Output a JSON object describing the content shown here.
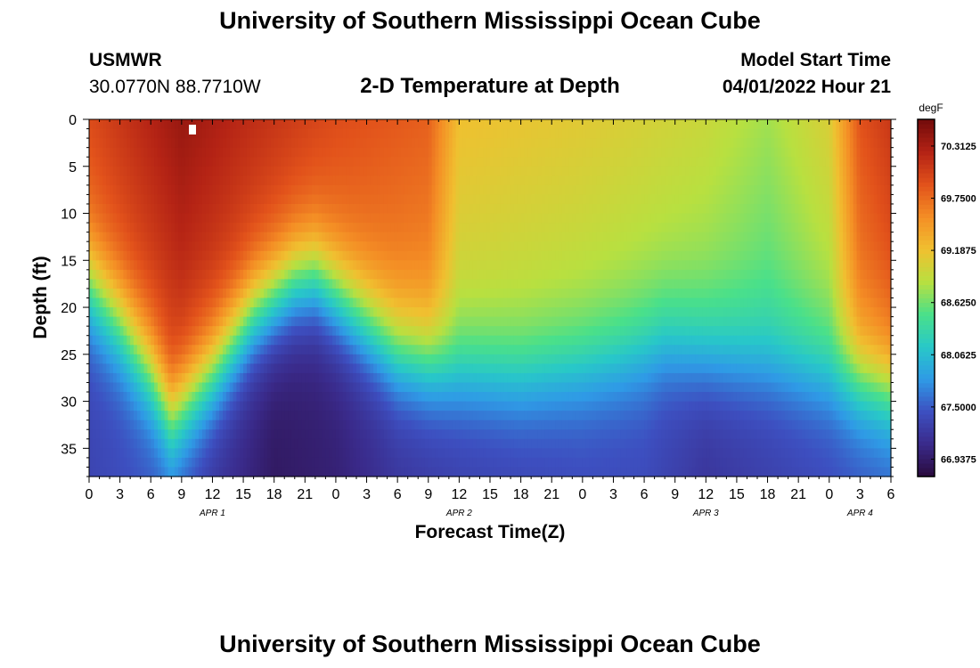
{
  "header": {
    "title": "University of Southern Mississippi Ocean Cube",
    "station": "USMWR",
    "coords": "30.0770N  88.7710W",
    "subtitle": "2-D Temperature at Depth",
    "model_label": "Model Start Time",
    "model_time": "04/01/2022 Hour 21"
  },
  "footer": {
    "title": "University of Southern Mississippi Ocean Cube"
  },
  "chart_data": {
    "type": "heatmap",
    "title": "2-D Temperature at Depth",
    "xlabel": "Forecast Time(Z)",
    "ylabel": "Depth (ft)",
    "x_range_hours": [
      0,
      78
    ],
    "x_tick_labels": [
      "0",
      "3",
      "6",
      "9",
      "12",
      "15",
      "18",
      "21",
      "0",
      "3",
      "6",
      "9",
      "12",
      "15",
      "18",
      "21",
      "0",
      "3",
      "6",
      "9",
      "12",
      "15",
      "18",
      "21",
      "0",
      "3",
      "6"
    ],
    "date_labels": [
      {
        "label": "APR 1",
        "hour": 12
      },
      {
        "label": "APR 2",
        "hour": 36
      },
      {
        "label": "APR 3",
        "hour": 60
      },
      {
        "label": "APR 4",
        "hour": 75
      }
    ],
    "y_range": [
      0,
      38
    ],
    "y_ticks": [
      0,
      5,
      10,
      15,
      20,
      25,
      30,
      35
    ],
    "colorbar": {
      "unit": "degF",
      "range": [
        66.75,
        70.6
      ],
      "tick_values": [
        66.9375,
        67.5,
        68.0625,
        68.625,
        69.1875,
        69.75,
        70.3125
      ],
      "tick_labels": [
        "66.9375",
        "67.5000",
        "68.0625",
        "68.6250",
        "69.1875",
        "69.7500",
        "70.3125"
      ],
      "colors": [
        "#2a0a3c",
        "#3a2a8a",
        "#3d4fc0",
        "#2f9ae6",
        "#28c8c8",
        "#4ae08a",
        "#b8e040",
        "#f0c030",
        "#f48e25",
        "#e2521b",
        "#b42315",
        "#720b0b"
      ]
    },
    "surface_temp": [
      [
        0,
        69.95
      ],
      [
        9,
        70.4
      ],
      [
        15,
        70.2
      ],
      [
        24,
        69.95
      ],
      [
        33,
        69.82
      ],
      [
        36,
        69.2
      ],
      [
        48,
        69.1
      ],
      [
        60,
        68.95
      ],
      [
        66,
        68.78
      ],
      [
        72,
        69.05
      ],
      [
        75,
        69.9
      ],
      [
        78,
        70.1
      ]
    ],
    "transition_depth_ft": [
      [
        0,
        18
      ],
      [
        3,
        22
      ],
      [
        6,
        27
      ],
      [
        8,
        31.5
      ],
      [
        12,
        27
      ],
      [
        16,
        21
      ],
      [
        20,
        17.5
      ],
      [
        22,
        17
      ],
      [
        26,
        21
      ],
      [
        30,
        25
      ],
      [
        36,
        27
      ],
      [
        42,
        27.5
      ],
      [
        48,
        26.5
      ],
      [
        52,
        25.5
      ],
      [
        56,
        24
      ],
      [
        60,
        25
      ],
      [
        66,
        26
      ],
      [
        72,
        27
      ],
      [
        78,
        29
      ]
    ],
    "bottom_temp": [
      [
        0,
        67.35
      ],
      [
        8,
        67.5
      ],
      [
        12,
        67.2
      ],
      [
        18,
        66.92
      ],
      [
        24,
        67.0
      ],
      [
        30,
        67.2
      ],
      [
        36,
        67.3
      ],
      [
        48,
        67.4
      ],
      [
        54,
        67.4
      ],
      [
        60,
        67.2
      ],
      [
        66,
        67.3
      ],
      [
        72,
        67.4
      ],
      [
        78,
        67.5
      ]
    ]
  }
}
